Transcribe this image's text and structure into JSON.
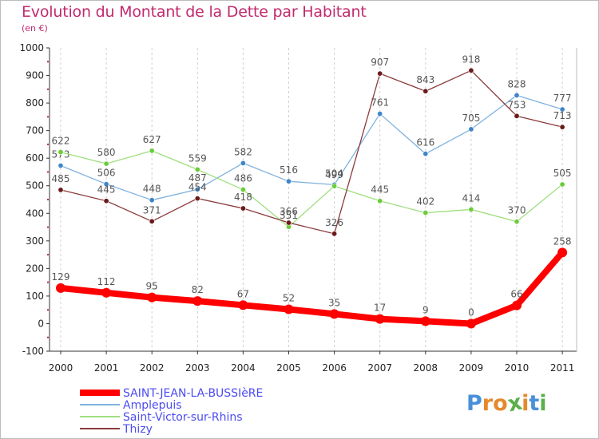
{
  "header": {
    "title": "Evolution du Montant de la Dette par Habitant",
    "subtitle": "(en €)"
  },
  "logo": {
    "text": "Proxiti",
    "colors": [
      "#4a90d9",
      "#e58a2c",
      "#e58a2c",
      "#5bb04b",
      "#e58a2c",
      "#4a90d9",
      "#5bb04b"
    ]
  },
  "chart_data": {
    "type": "line",
    "title": "Evolution du Montant de la Dette par Habitant",
    "subtitle": "(en €)",
    "x": [
      "2000",
      "2001",
      "2002",
      "2003",
      "2004",
      "2005",
      "2006",
      "2007",
      "2008",
      "2009",
      "2010",
      "2011"
    ],
    "ylim": [
      -100,
      1000
    ],
    "yticks": [
      "-100",
      "0",
      "100",
      "200",
      "300",
      "400",
      "500",
      "600",
      "700",
      "800",
      "900",
      "1000"
    ],
    "grid": "vertical-dashed",
    "legend_position": "bottom-left",
    "series": [
      {
        "name": "SAINT-JEAN-LA-BUSSIèRE",
        "color": "#ff0000",
        "marker": "#ff0000",
        "emphasis": true,
        "values": [
          129,
          112,
          95,
          82,
          67,
          52,
          35,
          17,
          9,
          0,
          66,
          258
        ],
        "labels": [
          "129",
          "112",
          "95",
          "82",
          "67",
          "52",
          "35",
          "17",
          "9",
          "0",
          "66",
          "258"
        ]
      },
      {
        "name": "Amplepuis",
        "color": "#7fb2df",
        "marker": "#3f86c8",
        "emphasis": false,
        "values": [
          573,
          506,
          448,
          487,
          582,
          516,
          504,
          761,
          616,
          705,
          828,
          777
        ],
        "labels": [
          "573",
          "506",
          "448",
          "487",
          "582",
          "516",
          "504",
          "761",
          "616",
          "705",
          "828",
          "777"
        ]
      },
      {
        "name": "Saint-Victor-sur-Rhins",
        "color": "#9fdf7f",
        "marker": "#6ccc3c",
        "emphasis": false,
        "values": [
          622,
          580,
          627,
          559,
          486,
          351,
          499,
          445,
          402,
          414,
          370,
          505
        ],
        "labels": [
          "622",
          "580",
          "627",
          "559",
          "486",
          "351",
          "499",
          "445",
          "402",
          "414",
          "370",
          "505"
        ]
      },
      {
        "name": "Thizy",
        "color": "#8a3b3b",
        "marker": "#6b1a1a",
        "emphasis": false,
        "values": [
          485,
          445,
          371,
          454,
          418,
          366,
          326,
          907,
          843,
          918,
          753,
          713
        ],
        "labels": [
          "485",
          "445",
          "371",
          "454",
          "418",
          "366",
          "326",
          "907",
          "843",
          "918",
          "753",
          "713"
        ]
      }
    ]
  }
}
